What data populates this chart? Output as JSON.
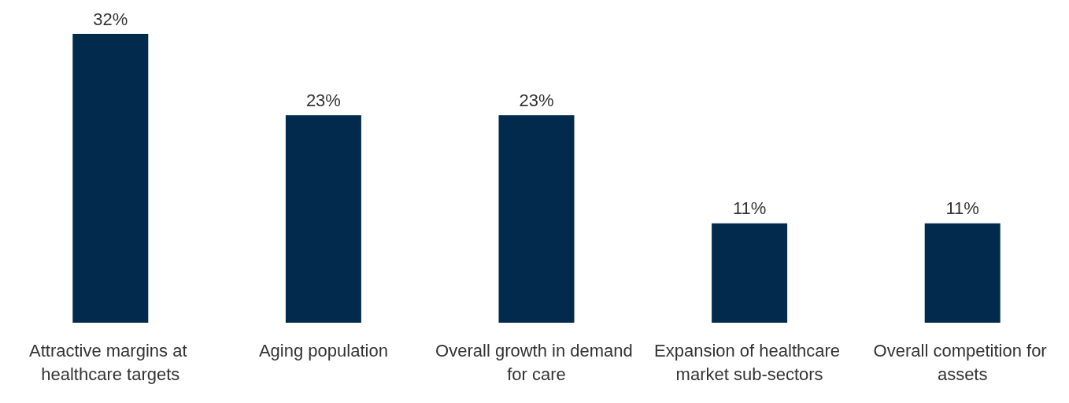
{
  "chart_data": {
    "type": "bar",
    "categories": [
      "Attractive margins at healthcare targets",
      "Aging population",
      "Overall growth in demand for care",
      "Expansion of healthcare market sub-sectors",
      "Overall competition for assets"
    ],
    "values": [
      32,
      23,
      23,
      11,
      11
    ],
    "value_labels": [
      "32%",
      "23%",
      "23%",
      "11%",
      "11%"
    ],
    "color": "#012a4c"
  }
}
